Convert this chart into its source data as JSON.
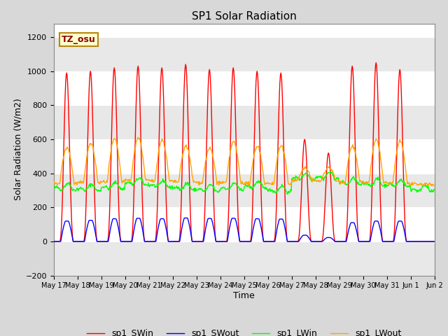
{
  "title": "SP1 Solar Radiation",
  "xlabel": "Time",
  "ylabel": "Solar Radiation (W/m2)",
  "ylim": [
    -200,
    1280
  ],
  "yticks": [
    -200,
    0,
    200,
    400,
    600,
    800,
    1000,
    1200
  ],
  "fig_bg_color": "#d8d8d8",
  "plot_bg_color": "#ffffff",
  "legend_entries": [
    "sp1_SWin",
    "sp1_SWout",
    "sp1_LWin",
    "sp1_LWout"
  ],
  "line_colors": [
    "red",
    "blue",
    "lime",
    "orange"
  ],
  "tz_label": "TZ_osu",
  "tz_box_facecolor": "#ffffcc",
  "tz_box_edgecolor": "#b8860b",
  "tz_text_color": "#8b0000"
}
